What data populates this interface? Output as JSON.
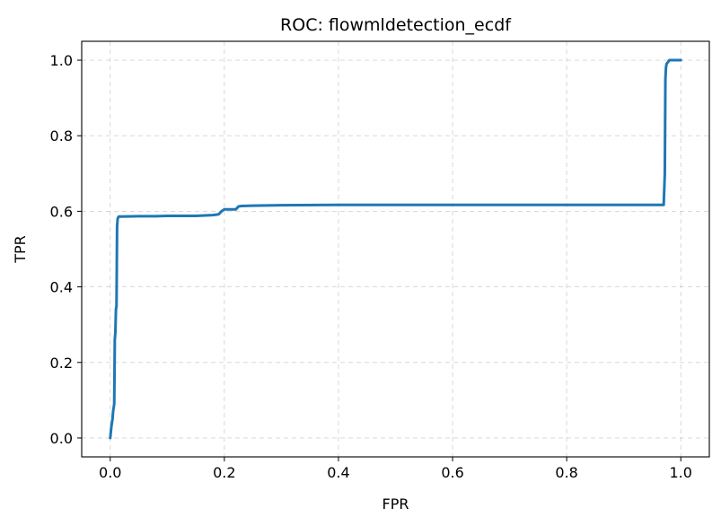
{
  "chart_data": {
    "type": "line",
    "title": "ROC: flowmldetection_ecdf",
    "xlabel": "FPR",
    "ylabel": "TPR",
    "xlim": [
      -0.05,
      1.05
    ],
    "ylim": [
      -0.05,
      1.05
    ],
    "xticks": [
      0.0,
      0.2,
      0.4,
      0.6,
      0.8,
      1.0
    ],
    "xtick_labels": [
      "0.0",
      "0.2",
      "0.4",
      "0.6",
      "0.8",
      "1.0"
    ],
    "yticks": [
      0.0,
      0.2,
      0.4,
      0.6,
      0.8,
      1.0
    ],
    "ytick_labels": [
      "0.0",
      "0.2",
      "0.4",
      "0.6",
      "0.8",
      "1.0"
    ],
    "grid": true,
    "grid_style": "dashed",
    "series": [
      {
        "color": "#1f77b4",
        "x": [
          0.0,
          0.002,
          0.004,
          0.005,
          0.007,
          0.008,
          0.009,
          0.01,
          0.011,
          0.012,
          0.013,
          0.014,
          0.015,
          0.02,
          0.05,
          0.08,
          0.1,
          0.15,
          0.18,
          0.19,
          0.195,
          0.2,
          0.21,
          0.22,
          0.225,
          0.23,
          0.25,
          0.3,
          0.4,
          0.6,
          0.8,
          0.9,
          0.97,
          0.972,
          0.973,
          0.974,
          0.975,
          0.98,
          1.0
        ],
        "y": [
          0.0,
          0.03,
          0.05,
          0.07,
          0.09,
          0.26,
          0.28,
          0.34,
          0.35,
          0.56,
          0.58,
          0.584,
          0.586,
          0.586,
          0.587,
          0.587,
          0.588,
          0.588,
          0.59,
          0.592,
          0.6,
          0.605,
          0.605,
          0.605,
          0.613,
          0.614,
          0.615,
          0.616,
          0.617,
          0.617,
          0.617,
          0.617,
          0.617,
          0.7,
          0.95,
          0.98,
          0.99,
          1.0,
          1.0
        ]
      }
    ]
  }
}
